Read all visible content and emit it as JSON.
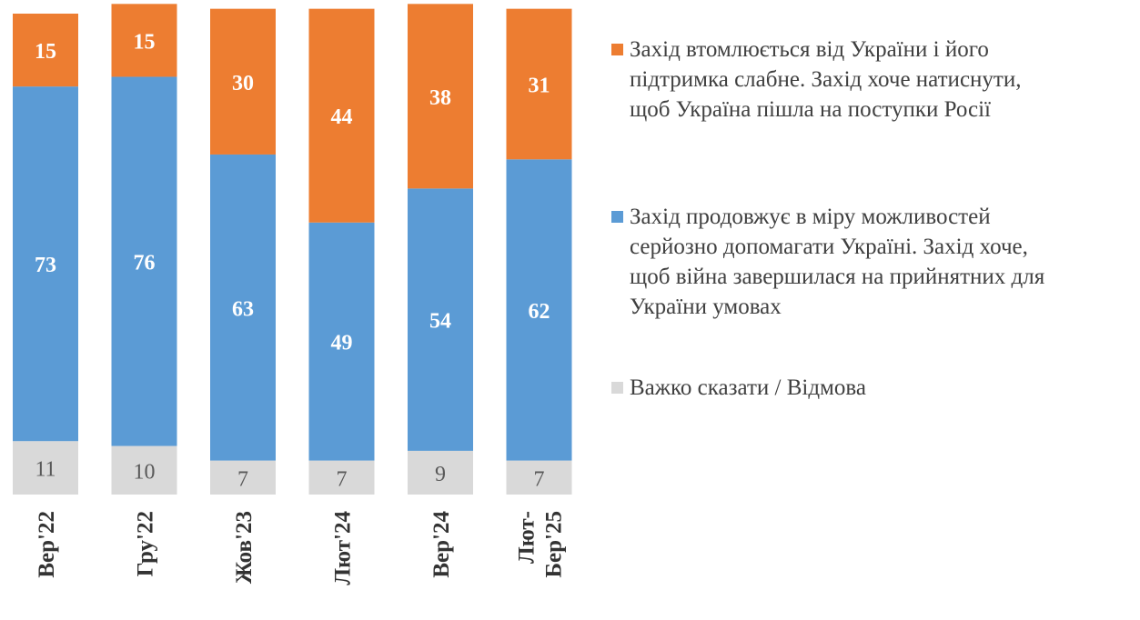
{
  "chart_data": {
    "type": "bar",
    "stacked": true,
    "orientation": "vertical",
    "categories": [
      "Вер'22",
      "Гру'22",
      "Жов'23",
      "Лют'24",
      "Вер'24",
      "Лют-Бер'25"
    ],
    "category_lines": [
      [
        "Вер'22"
      ],
      [
        "Гру'22"
      ],
      [
        "Жов'23"
      ],
      [
        "Лют'24"
      ],
      [
        "Вер'24"
      ],
      [
        "Лют-",
        "Бер'25"
      ]
    ],
    "series": [
      {
        "name": "Важко сказати / Відмова",
        "color": "#d9d9d9",
        "values": [
          11,
          10,
          7,
          7,
          9,
          7
        ]
      },
      {
        "name": "Захід продовжує в міру можливостей серйозно допомагати Україні. Захід хоче, щоб війна завершилася на прийнятних для України умовах",
        "color": "#5b9bd5",
        "values": [
          73,
          76,
          63,
          49,
          54,
          62
        ]
      },
      {
        "name": "Захід втомлюється від України і його підтримка слабне. Захід хоче натиснути, щоб Україна пішла на поступки Росії",
        "color": "#ed7d31",
        "values": [
          15,
          15,
          30,
          44,
          38,
          31
        ]
      }
    ],
    "ylim": [
      0,
      99
    ],
    "grid": false,
    "legend": "right"
  },
  "legend": {
    "items": [
      {
        "lines": [
          "Захід втомлюється від України і його",
          "підтримка слабне. Захід хоче натиснути,",
          "щоб Україна пішла на поступки Росії"
        ],
        "color": "#ed7d31"
      },
      {
        "lines": [
          "Захід продовжує в міру можливостей",
          "серйозно допомагати Україні. Захід хоче,",
          "щоб війна завершилася на прийнятних для",
          "України умовах"
        ],
        "color": "#5b9bd5"
      },
      {
        "lines": [
          "Важко сказати / Відмова"
        ],
        "color": "#d9d9d9"
      }
    ]
  }
}
